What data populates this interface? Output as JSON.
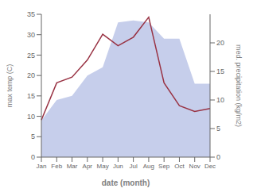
{
  "chart_data": {
    "type": "area",
    "xlabel": "date (month)",
    "ylabel": "max temp (C)",
    "y2label": "med. precipitation (kg/m2)",
    "categories": [
      "Jan",
      "Feb",
      "Mar",
      "Apr",
      "May",
      "Jun",
      "Jul",
      "Aug",
      "Sep",
      "Oct",
      "Nov",
      "Dec"
    ],
    "series": [
      {
        "type": "area",
        "color": "#bcc5e8",
        "values": [
          9.0,
          14.0,
          15.0,
          20.0,
          22.0,
          33.0,
          33.5,
          33.0,
          29.0,
          29.0,
          18.0,
          18.0
        ]
      },
      {
        "type": "line",
        "color": "#993344",
        "axis": "y2",
        "values": [
          6.5,
          13.0,
          14.0,
          17.0,
          21.5,
          19.5,
          21.0,
          24.5,
          13.0,
          9.0,
          8.0,
          8.5
        ]
      }
    ],
    "ylim": [
      0,
      35
    ],
    "yticks": [
      0,
      5,
      10,
      15,
      20,
      25,
      30,
      35
    ],
    "y2lim": [
      0,
      25
    ],
    "y2ticks": [
      0,
      5,
      10,
      15,
      20
    ],
    "grid": false
  }
}
